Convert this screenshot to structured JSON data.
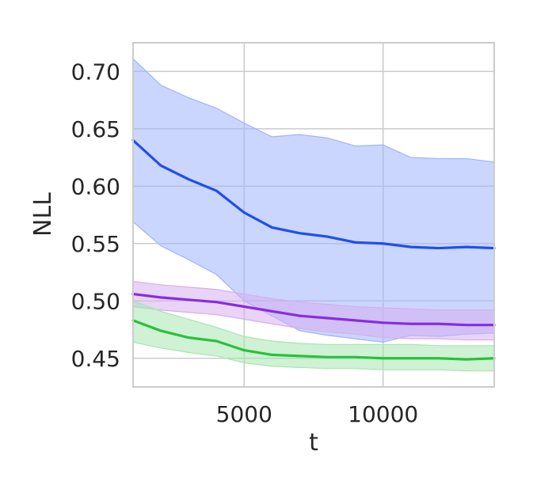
{
  "chart_data": {
    "type": "line",
    "title": "",
    "xlabel": "t",
    "ylabel": "NLL",
    "xlim": [
      1000,
      14000
    ],
    "ylim": [
      0.425,
      0.725
    ],
    "xticks": [
      5000,
      10000
    ],
    "xtick_labels": [
      "5000",
      "10000"
    ],
    "yticks": [
      0.45,
      0.5,
      0.55,
      0.6,
      0.65,
      0.7
    ],
    "ytick_labels": [
      "0.45",
      "0.50",
      "0.55",
      "0.60",
      "0.65",
      "0.70"
    ],
    "grid": true,
    "legend": "none",
    "x": [
      1000,
      2000,
      3000,
      4000,
      5000,
      6000,
      7000,
      8000,
      9000,
      10000,
      11000,
      12000,
      13000,
      14000
    ],
    "series": [
      {
        "color": "#1f4ef0",
        "band_color": "#9fb4fb",
        "values": [
          0.64,
          0.618,
          0.606,
          0.596,
          0.577,
          0.564,
          0.559,
          0.556,
          0.551,
          0.55,
          0.547,
          0.546,
          0.547,
          0.546
        ],
        "upper": [
          0.711,
          0.688,
          0.677,
          0.668,
          0.655,
          0.643,
          0.645,
          0.642,
          0.635,
          0.636,
          0.625,
          0.624,
          0.624,
          0.621
        ],
        "lower": [
          0.569,
          0.548,
          0.536,
          0.523,
          0.5,
          0.487,
          0.474,
          0.47,
          0.467,
          0.464,
          0.47,
          0.469,
          0.471,
          0.472
        ]
      },
      {
        "color": "#8a2be2",
        "band_color": "#d7aef0",
        "values": [
          0.506,
          0.503,
          0.501,
          0.499,
          0.495,
          0.491,
          0.487,
          0.485,
          0.483,
          0.481,
          0.48,
          0.48,
          0.479,
          0.479
        ],
        "upper": [
          0.517,
          0.514,
          0.512,
          0.51,
          0.506,
          0.502,
          0.499,
          0.497,
          0.495,
          0.494,
          0.493,
          0.492,
          0.492,
          0.492
        ],
        "lower": [
          0.495,
          0.492,
          0.49,
          0.488,
          0.484,
          0.48,
          0.476,
          0.473,
          0.471,
          0.468,
          0.467,
          0.467,
          0.466,
          0.466
        ]
      },
      {
        "color": "#27c23a",
        "band_color": "#a8e6b0",
        "values": [
          0.483,
          0.474,
          0.468,
          0.465,
          0.457,
          0.453,
          0.452,
          0.451,
          0.451,
          0.45,
          0.45,
          0.45,
          0.449,
          0.45
        ],
        "upper": [
          0.5,
          0.491,
          0.484,
          0.477,
          0.469,
          0.465,
          0.463,
          0.462,
          0.462,
          0.462,
          0.462,
          0.461,
          0.461,
          0.461
        ],
        "lower": [
          0.464,
          0.459,
          0.455,
          0.452,
          0.446,
          0.443,
          0.442,
          0.441,
          0.441,
          0.44,
          0.44,
          0.44,
          0.439,
          0.439
        ]
      }
    ]
  }
}
